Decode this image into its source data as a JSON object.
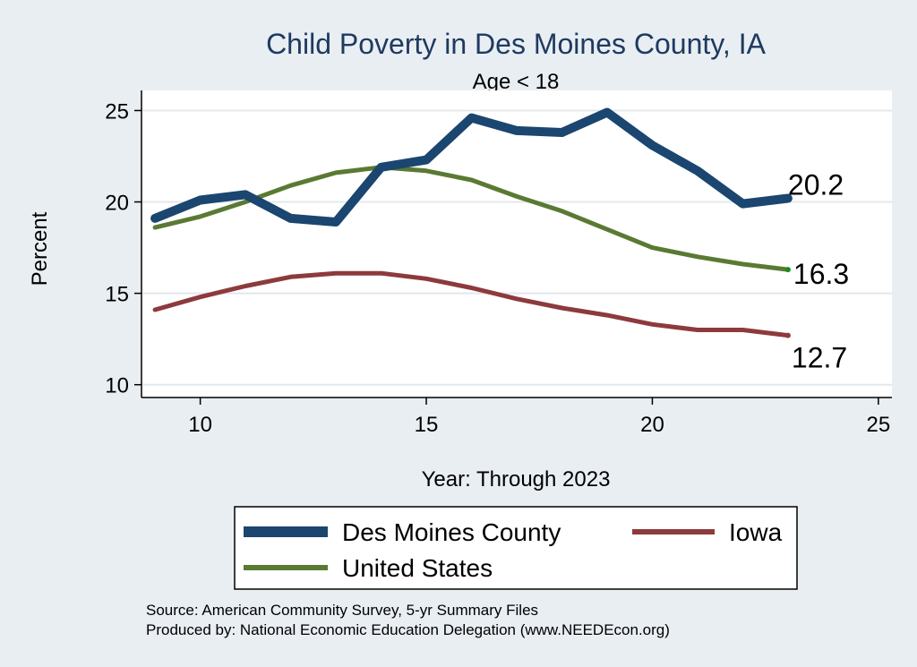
{
  "chart_data": {
    "type": "line",
    "title": "Child Poverty in Des Moines County, IA",
    "subtitle": "Age < 18",
    "xlabel": "Year: Through 2023",
    "ylabel": "Percent",
    "xlim": [
      8.7,
      25.3
    ],
    "ylim": [
      9.3,
      26.1
    ],
    "xticks": [
      10,
      15,
      20,
      25
    ],
    "yticks": [
      10,
      15,
      20,
      25
    ],
    "x": [
      9,
      10,
      11,
      12,
      13,
      14,
      15,
      16,
      17,
      18,
      19,
      20,
      21,
      22,
      23
    ],
    "series": [
      {
        "name": "Des Moines County",
        "color": "#1a4670",
        "values": [
          19.1,
          20.1,
          20.4,
          19.1,
          18.9,
          21.9,
          22.3,
          24.6,
          23.9,
          23.8,
          24.9,
          23.1,
          21.7,
          19.9,
          20.2
        ],
        "end_label": "20.2"
      },
      {
        "name": "United States",
        "color": "#5a7a33",
        "values": [
          18.6,
          19.2,
          20.0,
          20.9,
          21.6,
          21.9,
          21.7,
          21.2,
          20.3,
          19.5,
          18.5,
          17.5,
          17.0,
          16.6,
          16.3
        ],
        "end_label": "16.3"
      },
      {
        "name": "Iowa",
        "color": "#8d3a3d",
        "values": [
          14.1,
          14.8,
          15.4,
          15.9,
          16.1,
          16.1,
          15.8,
          15.3,
          14.7,
          14.2,
          13.8,
          13.3,
          13.0,
          13.0,
          12.7
        ],
        "end_label": "12.7"
      }
    ],
    "legend": {
      "placement": "bottom",
      "entries": [
        "Des Moines County",
        "Iowa",
        "United States"
      ]
    },
    "notes": [
      "Source: American Community Survey, 5-yr Summary Files",
      "Produced by: National Economic Education Delegation (www.NEEDEcon.org)"
    ],
    "grid": true
  }
}
